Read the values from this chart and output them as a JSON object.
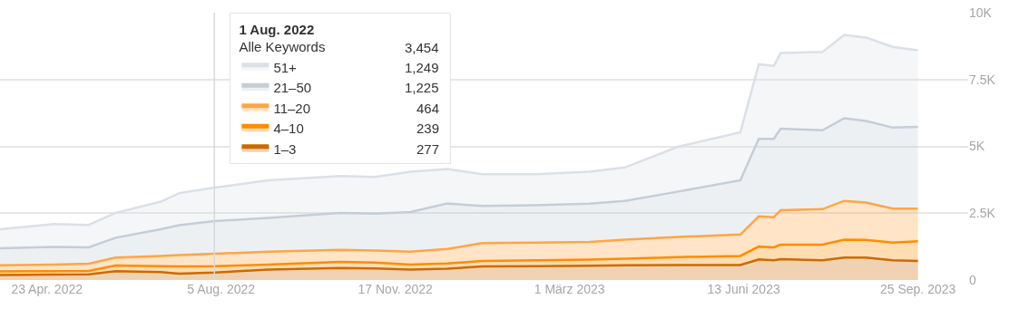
{
  "chart_data": {
    "type": "area",
    "stacked": true,
    "legend_title": "1 Aug. 2022",
    "legend": "top",
    "grid": "y",
    "annotations": [
      "Alle Keywords",
      "3,454",
      "1,249",
      "1,225",
      "464",
      "239",
      "277"
    ],
    "x": [
      "2022-03-26",
      "2022-04-27",
      "2022-05-18",
      "2022-06-03",
      "2022-06-30",
      "2022-07-11",
      "2022-08-01",
      "2022-09-02",
      "2022-10-15",
      "2022-11-05",
      "2022-11-26",
      "2022-12-18",
      "2023-01-08",
      "2023-02-09",
      "2023-03-13",
      "2023-04-03",
      "2023-05-05",
      "2023-06-11",
      "2023-06-22",
      "2023-07-01",
      "2023-07-05",
      "2023-07-30",
      "2023-08-12",
      "2023-08-25",
      "2023-09-10",
      "2023-09-25"
    ],
    "series": [
      {
        "name": "1–3",
        "color": "#cc6a00",
        "values": [
          190,
          200,
          210,
          330,
          300,
          240,
          277,
          390,
          450,
          430,
          390,
          420,
          510,
          520,
          530,
          550,
          560,
          560,
          770,
          740,
          780,
          740,
          840,
          840,
          740,
          710
        ]
      },
      {
        "name": "4–10",
        "color": "#ff8c00",
        "values": [
          130,
          130,
          130,
          210,
          220,
          270,
          239,
          190,
          230,
          220,
          190,
          200,
          200,
          220,
          230,
          250,
          300,
          340,
          480,
          480,
          540,
          580,
          670,
          660,
          660,
          740
        ]
      },
      {
        "name": "11–20",
        "color": "#ffa544",
        "values": [
          230,
          250,
          270,
          300,
          380,
          420,
          464,
          480,
          450,
          450,
          480,
          540,
          670,
          660,
          660,
          710,
          750,
          800,
          1130,
          1130,
          1290,
          1330,
          1450,
          1400,
          1270,
          1220
        ]
      },
      {
        "name": "21–50",
        "color": "#c5cdd7",
        "values": [
          640,
          660,
          610,
          740,
          1000,
          1120,
          1225,
          1260,
          1380,
          1380,
          1480,
          1700,
          1390,
          1400,
          1440,
          1450,
          1700,
          2030,
          2900,
          2930,
          3050,
          2950,
          3090,
          3050,
          3030,
          3060
        ]
      },
      {
        "name": "51+",
        "color": "#dbe0e7",
        "values": [
          710,
          850,
          840,
          930,
          1030,
          1200,
          1249,
          1410,
          1380,
          1380,
          1510,
          1290,
          1190,
          1160,
          1190,
          1250,
          1680,
          1800,
          2790,
          2730,
          2830,
          2930,
          3120,
          3120,
          3020,
          2860
        ]
      }
    ],
    "xlim": [
      "2022-03-26",
      "2023-10-25"
    ],
    "xticks": [
      {
        "value": "2022-04-23",
        "label": "23 Apr. 2022"
      },
      {
        "value": "2022-08-05",
        "label": "5 Aug. 2022"
      },
      {
        "value": "2022-11-17",
        "label": "17 Nov. 2022"
      },
      {
        "value": "2023-03-01",
        "label": "1 März 2023"
      },
      {
        "value": "2023-06-13",
        "label": "13 Juni 2023"
      },
      {
        "value": "2023-09-25",
        "label": "25 Sep. 2023"
      }
    ],
    "ylim": [
      0,
      10000
    ],
    "yticks": [
      0,
      {
        "value": 2500,
        "label": "2.5K"
      },
      {
        "value": 5000,
        "label": "5K"
      },
      {
        "value": 7500,
        "label": "7.5K"
      },
      {
        "value": 10000,
        "label": "10K"
      }
    ],
    "ref_lines": [
      {
        "axis": "x",
        "value": "2022-08-01",
        "color": "#d9d9d9"
      }
    ]
  }
}
